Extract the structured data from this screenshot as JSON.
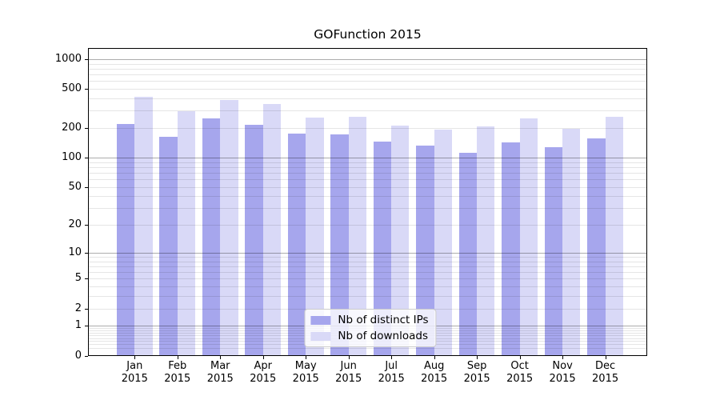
{
  "chart_data": {
    "type": "bar",
    "title": "GOFunction 2015",
    "categories": [
      {
        "month": "Jan",
        "year": "2015"
      },
      {
        "month": "Feb",
        "year": "2015"
      },
      {
        "month": "Mar",
        "year": "2015"
      },
      {
        "month": "Apr",
        "year": "2015"
      },
      {
        "month": "May",
        "year": "2015"
      },
      {
        "month": "Jun",
        "year": "2015"
      },
      {
        "month": "Jul",
        "year": "2015"
      },
      {
        "month": "Aug",
        "year": "2015"
      },
      {
        "month": "Sep",
        "year": "2015"
      },
      {
        "month": "Oct",
        "year": "2015"
      },
      {
        "month": "Nov",
        "year": "2015"
      },
      {
        "month": "Dec",
        "year": "2015"
      }
    ],
    "series": [
      {
        "name": "Nb of distinct IPs",
        "slug": "distinct-ips",
        "color": "#a6a6ed",
        "values": [
          222,
          162,
          250,
          216,
          175,
          173,
          145,
          132,
          113,
          143,
          127,
          157
        ]
      },
      {
        "name": "Nb of downloads",
        "slug": "downloads",
        "color": "#d9d9f7",
        "values": [
          415,
          300,
          385,
          355,
          255,
          262,
          211,
          193,
          208,
          250,
          196,
          262
        ]
      }
    ],
    "y_axis": {
      "scale": "log10(value+1)",
      "axis_max": 1300,
      "tick_values": [
        1000,
        500,
        200,
        100,
        50,
        20,
        10,
        5,
        2,
        1,
        0
      ],
      "major_grid_values": [
        1,
        10,
        100,
        1000
      ],
      "minor_grid_values": [
        0.2,
        0.3,
        0.4,
        0.5,
        0.6,
        0.7,
        0.8,
        0.9,
        2,
        3,
        4,
        6,
        7,
        8,
        9,
        20,
        30,
        40,
        60,
        70,
        80,
        90,
        200,
        300,
        400,
        600,
        700,
        800,
        900,
        5,
        50,
        500
      ],
      "grid": true
    },
    "legend": {
      "location": "lower center",
      "frame": true
    },
    "colors": {
      "background": "#ffffff",
      "axis": "#000000",
      "grid_major": "rgba(0,0,0,0.32)",
      "grid_minor": "rgba(0,0,0,0.10)",
      "legend_background": "rgba(255,255,255,0.8)",
      "legend_border": "#cccccc"
    }
  }
}
